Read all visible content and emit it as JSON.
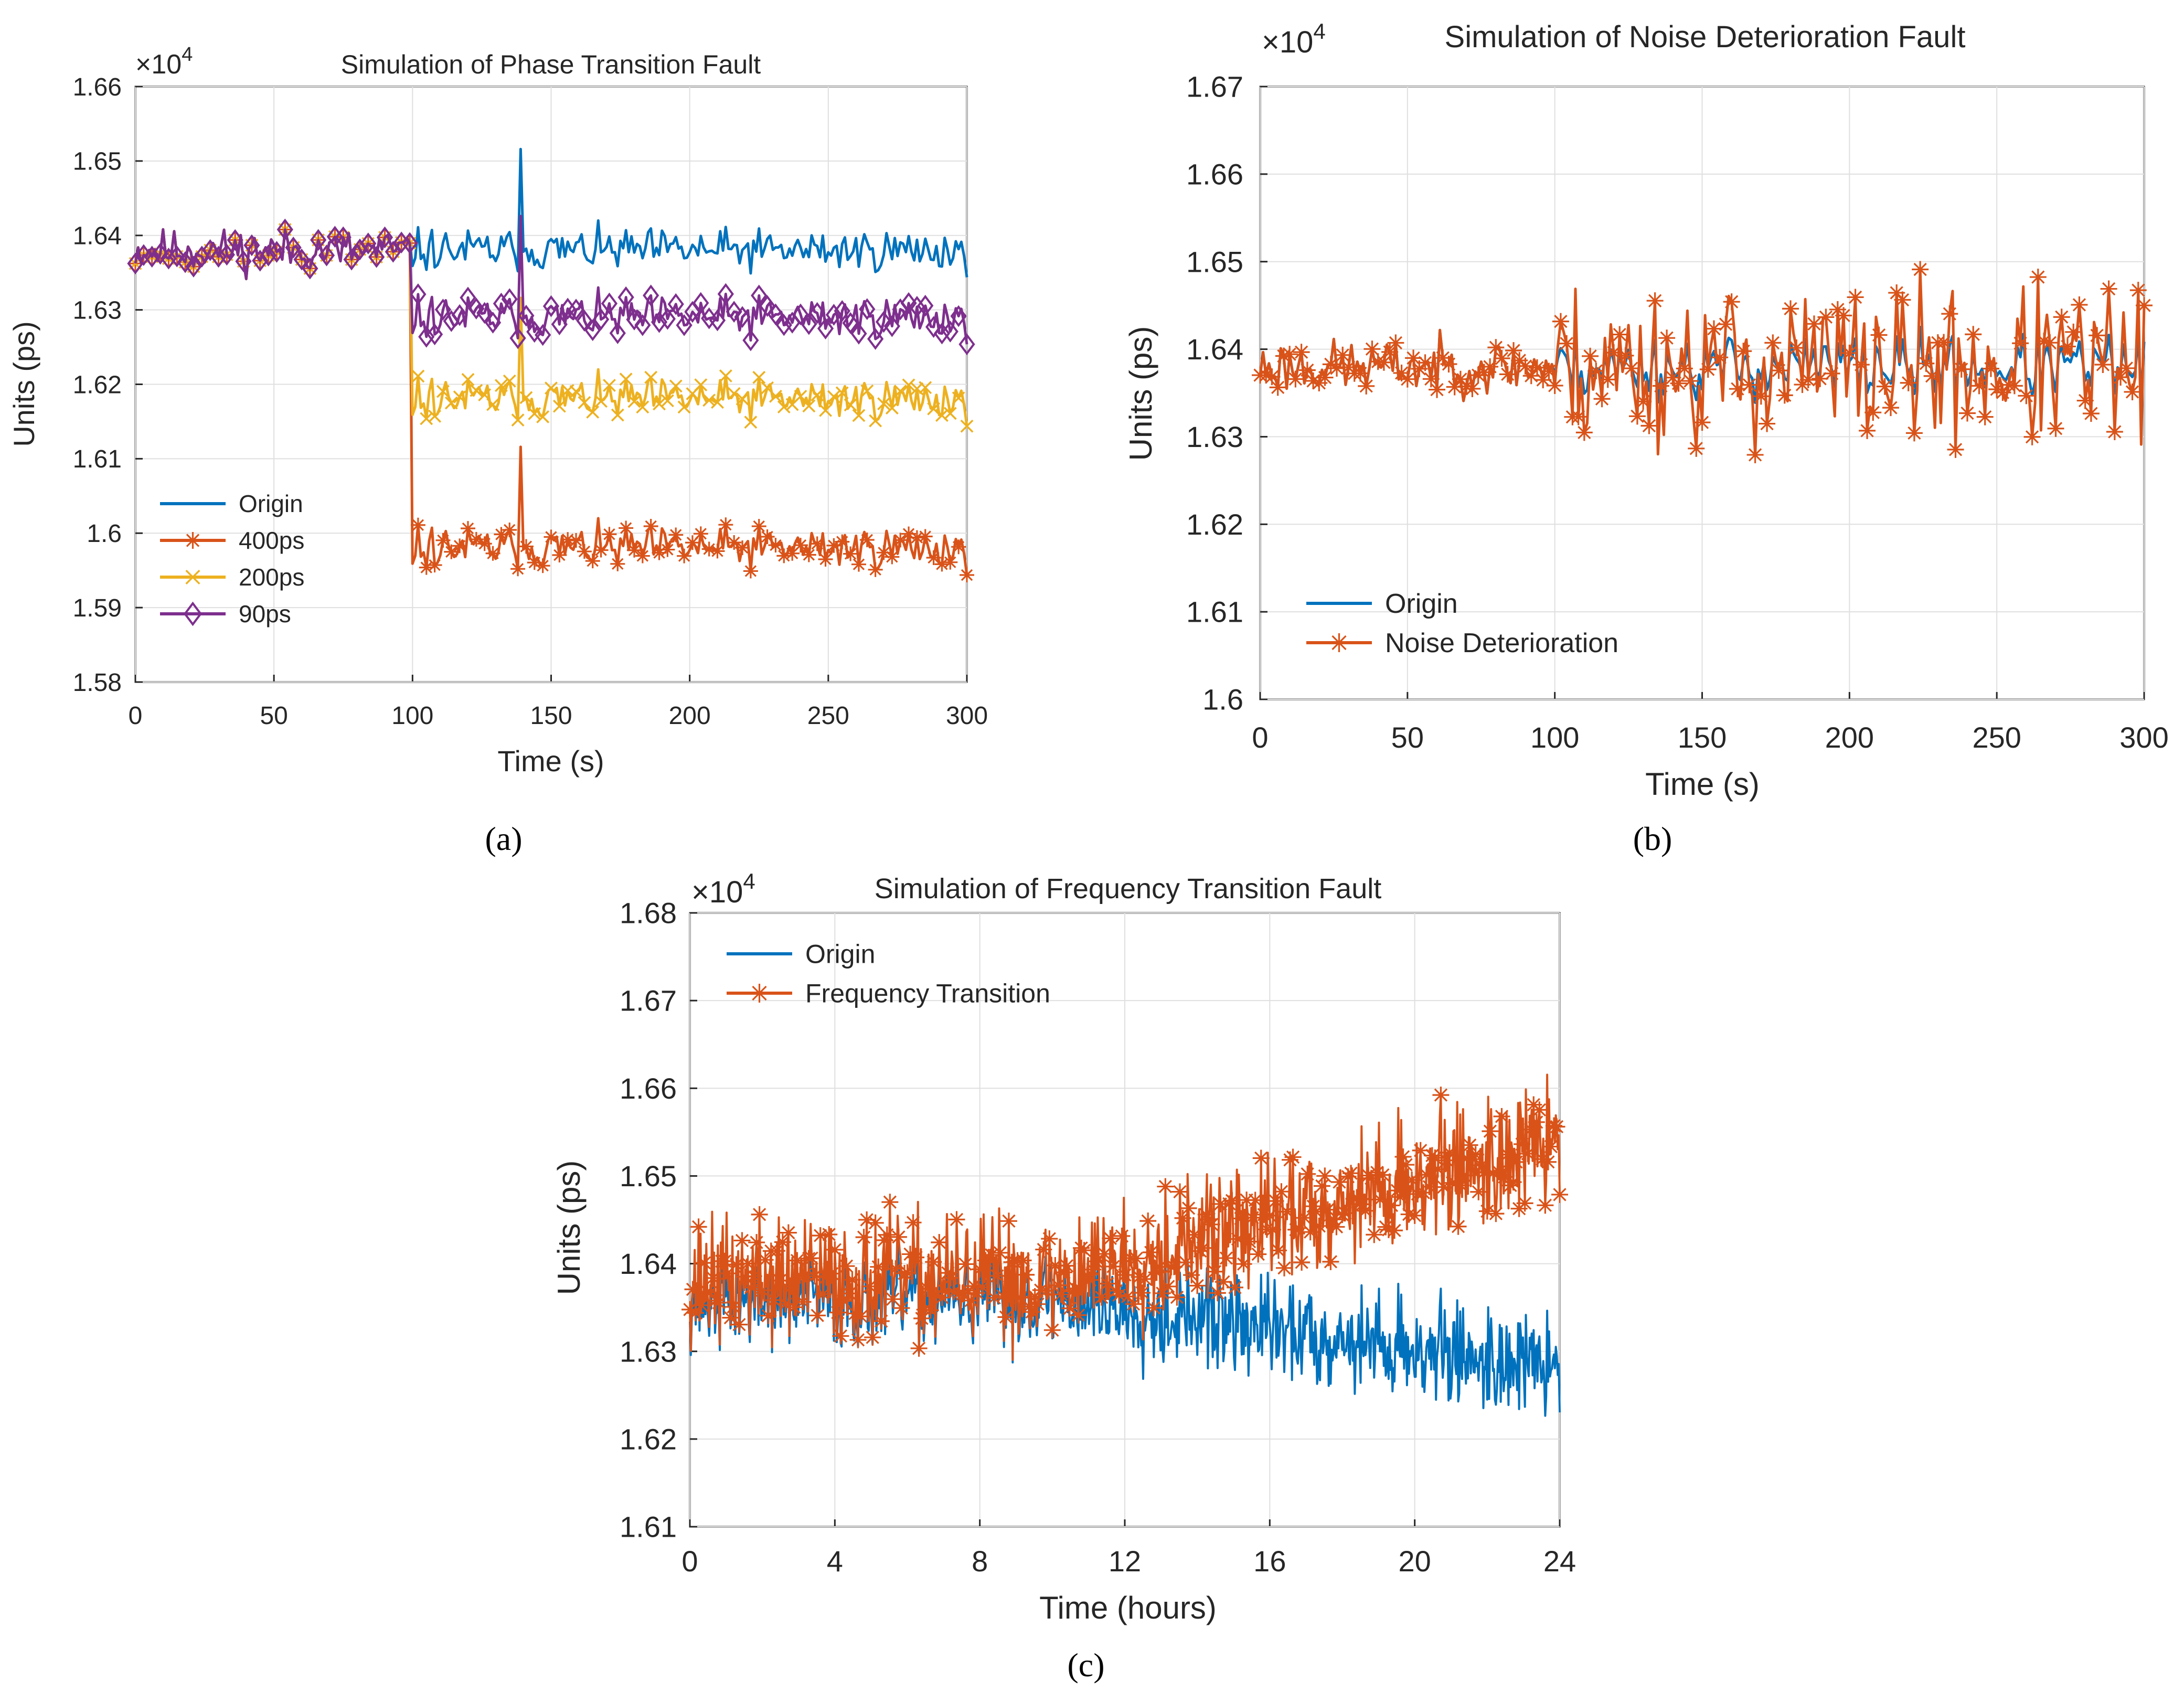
{
  "chart_data": [
    {
      "type": "line",
      "id": "a",
      "panel_label": "(a)",
      "title": "Simulation of Phase Transition Fault",
      "xlabel": "Time (s)",
      "ylabel": "Units (ps)",
      "y_exponent": "×10",
      "y_exponent_power": "4",
      "xlim": [
        0,
        300
      ],
      "ylim": [
        1.58,
        1.66
      ],
      "xticks": [
        0,
        50,
        100,
        150,
        200,
        250,
        300
      ],
      "yticks": [
        1.58,
        1.59,
        1.6,
        1.61,
        1.62,
        1.63,
        1.64,
        1.65,
        1.66
      ],
      "xtick_labels": [
        "0",
        "50",
        "100",
        "150",
        "200",
        "250",
        "300"
      ],
      "ytick_labels": [
        "1.58",
        "1.59",
        "1.6",
        "1.61",
        "1.62",
        "1.63",
        "1.64",
        "1.65",
        "1.66"
      ],
      "grid": true,
      "legend_position": "bottom-left",
      "fault_time": 100,
      "series": [
        {
          "name": "Origin",
          "color": "#0072BD",
          "marker": "none",
          "base": 1.638,
          "post_base": 1.638,
          "amp": 0.0042,
          "seed": 11,
          "spike_at": 139,
          "spike_value": 1.6516
        },
        {
          "name": "400ps",
          "color": "#D95319",
          "marker": "asterisk",
          "base": 1.638,
          "post_base": 1.598,
          "amp": 0.0042,
          "seed": 11,
          "spike_at": 139,
          "spike_value": 1.6116
        },
        {
          "name": "200ps",
          "color": "#EDB120",
          "marker": "x",
          "base": 1.638,
          "post_base": 1.618,
          "amp": 0.0042,
          "seed": 11,
          "spike_at": 139,
          "spike_value": 1.6316
        },
        {
          "name": "90ps",
          "color": "#7E2F8E",
          "marker": "diamond",
          "base": 1.638,
          "post_base": 1.629,
          "amp": 0.0042,
          "seed": 11,
          "spike_at": 139,
          "spike_value": 1.6426
        }
      ]
    },
    {
      "type": "line",
      "id": "b",
      "panel_label": "(b)",
      "title": "Simulation of Noise Deterioration Fault",
      "xlabel": "Time (s)",
      "ylabel": "Units (ps)",
      "y_exponent": "×10",
      "y_exponent_power": "4",
      "xlim": [
        0,
        300
      ],
      "ylim": [
        1.6,
        1.67
      ],
      "xticks": [
        0,
        50,
        100,
        150,
        200,
        250,
        300
      ],
      "yticks": [
        1.6,
        1.61,
        1.62,
        1.63,
        1.64,
        1.65,
        1.66,
        1.67
      ],
      "xtick_labels": [
        "0",
        "50",
        "100",
        "150",
        "200",
        "250",
        "300"
      ],
      "ytick_labels": [
        "1.6",
        "1.61",
        "1.62",
        "1.63",
        "1.64",
        "1.65",
        "1.66",
        "1.67"
      ],
      "grid": true,
      "legend_position": "bottom-left",
      "fault_time": 100,
      "series": [
        {
          "name": "Origin",
          "color": "#0072BD",
          "marker": "none",
          "base": 1.638,
          "amp": 0.0045,
          "post_amp": 0.0055,
          "seed": 23
        },
        {
          "name": "Noise Deterioration",
          "color": "#D95319",
          "marker": "asterisk",
          "base": 1.638,
          "amp": 0.0045,
          "post_amp": 0.0135,
          "seed": 23
        }
      ]
    },
    {
      "type": "line",
      "id": "c",
      "panel_label": "(c)",
      "title": "Simulation of Frequency Transition Fault",
      "xlabel": "Time (hours)",
      "ylabel": "Units (ps)",
      "y_exponent": "×10",
      "y_exponent_power": "4",
      "xlim": [
        0,
        24
      ],
      "ylim": [
        1.61,
        1.68
      ],
      "xticks": [
        0,
        4,
        8,
        12,
        16,
        20,
        24
      ],
      "yticks": [
        1.61,
        1.62,
        1.63,
        1.64,
        1.65,
        1.66,
        1.67,
        1.68
      ],
      "xtick_labels": [
        "0",
        "4",
        "8",
        "12",
        "16",
        "20",
        "24"
      ],
      "ytick_labels": [
        "1.61",
        "1.62",
        "1.63",
        "1.64",
        "1.65",
        "1.66",
        "1.67",
        "1.68"
      ],
      "grid": true,
      "legend_position": "top-left",
      "fault_time": 10,
      "series": [
        {
          "name": "Origin",
          "color": "#0072BD",
          "marker": "none",
          "base": 1.636,
          "drift_end": 1.628,
          "amp": 0.0085,
          "seed": 37
        },
        {
          "name": "Frequency Transition",
          "color": "#D95319",
          "marker": "asterisk",
          "base": 1.638,
          "drift_end": 1.654,
          "amp": 0.0105,
          "seed": 37
        }
      ]
    }
  ]
}
